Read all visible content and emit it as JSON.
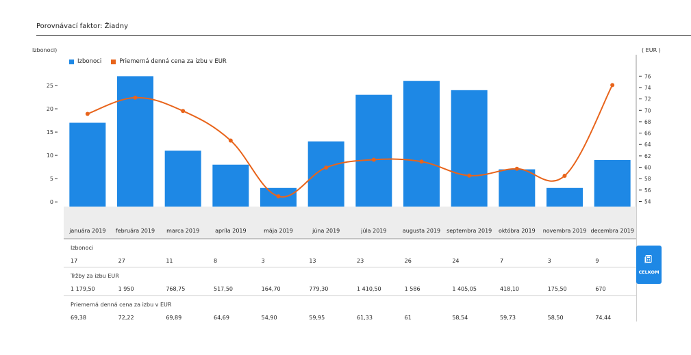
{
  "header": {
    "title": "Porovnávací faktor: Žiadny"
  },
  "axes": {
    "left_caption": "Izbonoci)",
    "right_caption": "( EUR )"
  },
  "legend": {
    "items": [
      {
        "label": "Izbonoci",
        "color": "#1e88e5"
      },
      {
        "label": "Priemerná denná cena za izbu v EUR",
        "color": "#e8641b"
      }
    ]
  },
  "chart_data": {
    "type": "bar",
    "categories": [
      "januára 2019",
      "februára 2019",
      "marca 2019",
      "apríla 2019",
      "mája 2019",
      "júna 2019",
      "júla 2019",
      "augusta 2019",
      "septembra 2019",
      "októbra 2019",
      "novembra 2019",
      "decembra 2019"
    ],
    "series": [
      {
        "name": "Izbonoci",
        "type": "bar",
        "axis": "left",
        "color": "#1e88e5",
        "values": [
          17,
          27,
          11,
          8,
          3,
          13,
          23,
          26,
          24,
          7,
          3,
          9
        ]
      },
      {
        "name": "Priemerná denná cena za izbu v EUR",
        "type": "line",
        "axis": "right",
        "color": "#e8641b",
        "values": [
          69.38,
          72.22,
          69.89,
          64.69,
          54.9,
          59.95,
          61.33,
          61,
          58.54,
          59.73,
          58.5,
          74.44
        ]
      }
    ],
    "left_axis": {
      "ticks": [
        0,
        5,
        10,
        15,
        20,
        25
      ],
      "range": [
        -1,
        27.5
      ]
    },
    "right_axis": {
      "ticks": [
        54,
        56,
        58,
        60,
        62,
        64,
        66,
        68,
        70,
        72,
        74,
        76
      ],
      "range": [
        53.1,
        76.4
      ]
    },
    "grid": false,
    "legend_position": "top-left"
  },
  "table": {
    "sections": [
      {
        "title": "Izbonoci",
        "values": [
          "17",
          "27",
          "11",
          "8",
          "3",
          "13",
          "23",
          "26",
          "24",
          "7",
          "3",
          "9"
        ]
      },
      {
        "title": "Tržby za izbu EUR",
        "values": [
          "1 179,50",
          "1 950",
          "768,75",
          "517,50",
          "164,70",
          "779,30",
          "1 410,50",
          "1 586",
          "1 405,05",
          "418,10",
          "175,50",
          "670"
        ]
      },
      {
        "title": "Priemerná denná cena za izbu v EUR",
        "values": [
          "69,38",
          "72,22",
          "69,89",
          "64,69",
          "54,90",
          "59,95",
          "61,33",
          "61",
          "58,54",
          "59,73",
          "58,50",
          "74,44"
        ]
      }
    ]
  },
  "total_button": {
    "label": "CELKOM",
    "icon": "calculator-icon"
  }
}
